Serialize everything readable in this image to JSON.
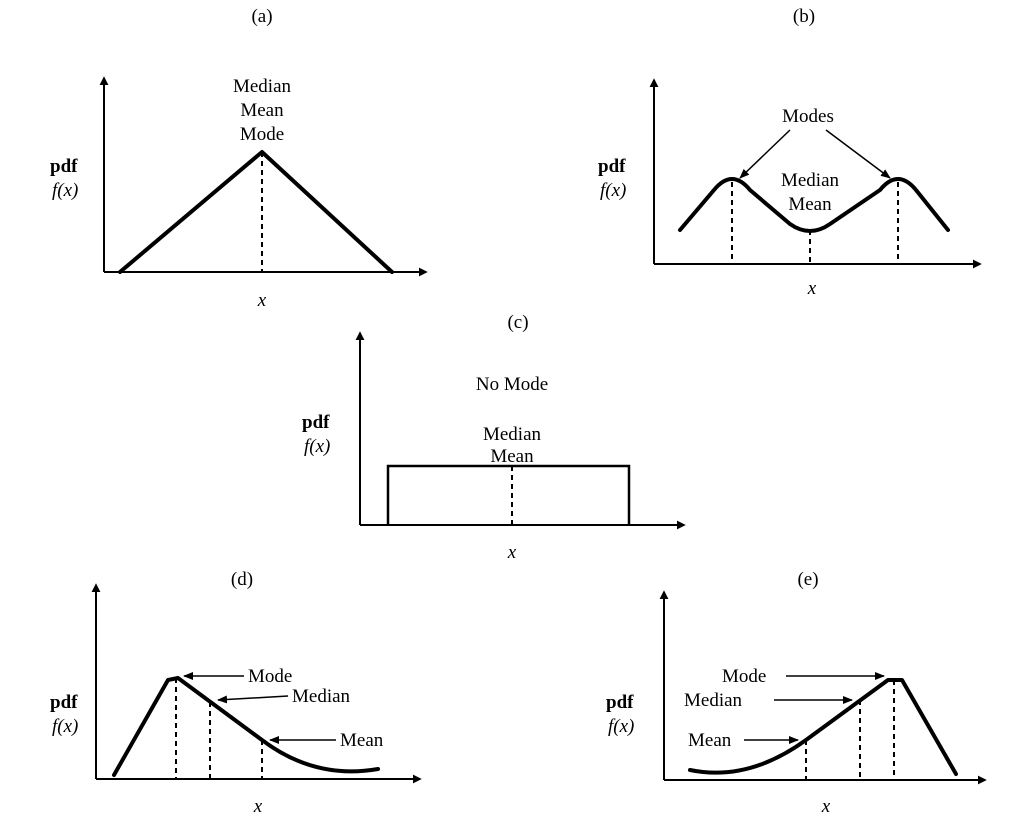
{
  "common": {
    "pdf": "pdf",
    "fx": "f(x)",
    "x": "x"
  },
  "panels": {
    "a": {
      "label": "(a)",
      "annotations": [
        "Median",
        "Mean",
        "Mode"
      ]
    },
    "b": {
      "label": "(b)",
      "modes": "Modes",
      "median": "Median",
      "mean": "Mean"
    },
    "c": {
      "label": "(c)",
      "no_mode": "No Mode",
      "median": "Median",
      "mean": "Mean"
    },
    "d": {
      "label": "(d)",
      "mode": "Mode",
      "median": "Median",
      "mean": "Mean"
    },
    "e": {
      "label": "(e)",
      "mode": "Mode",
      "median": "Median",
      "mean": "Mean"
    }
  }
}
